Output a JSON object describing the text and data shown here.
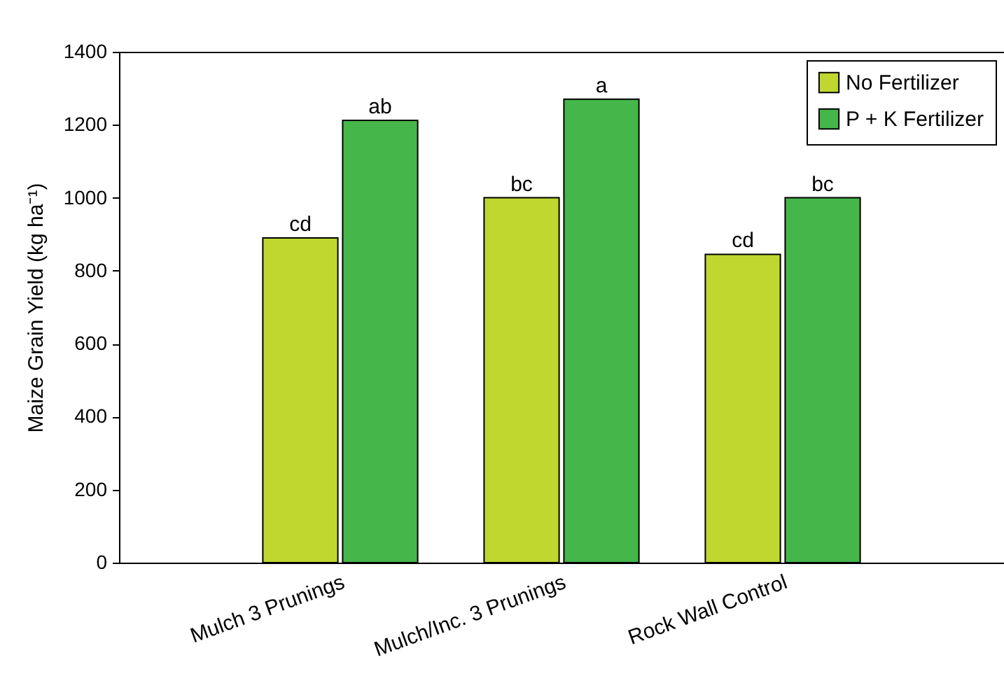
{
  "chart_data": {
    "type": "bar",
    "ylabel": "Maize Grain Yield (kg ha⁻¹)",
    "categories": [
      "Mulch 3 Prunings",
      "Mulch/Inc. 3 Prunings",
      "Rock Wall Control"
    ],
    "series": [
      {
        "name": "No Fertilizer",
        "color": "#c0d72f",
        "values": [
          890,
          1000,
          845
        ],
        "value_labels": [
          "cd",
          "bc",
          "cd"
        ]
      },
      {
        "name": "P + K Fertilizer",
        "color": "#45b649",
        "values": [
          1212,
          1270,
          1000
        ],
        "value_labels": [
          "ab",
          "a",
          "bc"
        ]
      }
    ],
    "ylim": [
      0,
      1400
    ],
    "yticks": [
      0,
      200,
      400,
      600,
      800,
      1000,
      1200,
      1400
    ],
    "grid": false,
    "legend": "top right"
  }
}
